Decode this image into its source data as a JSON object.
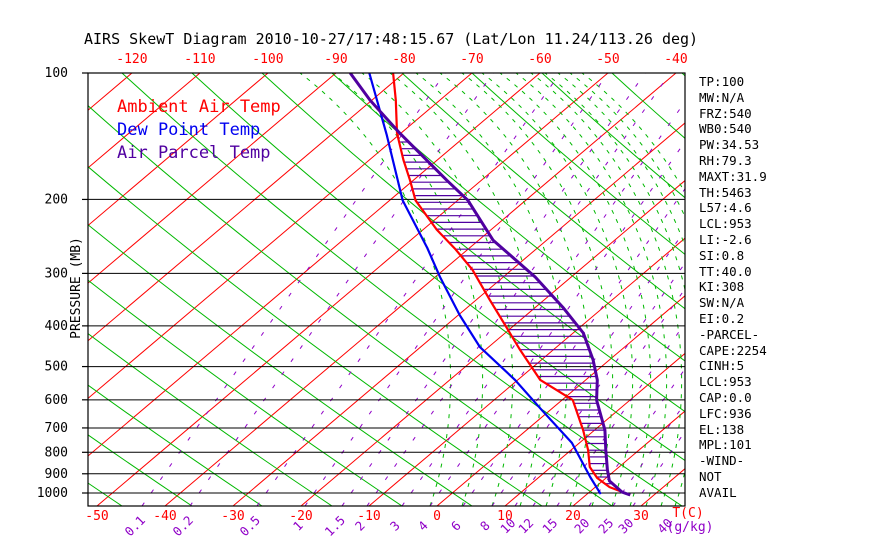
{
  "title": "AIRS SkewT Diagram 2010-10-27/17:48:15.67 (Lat/Lon 11.24/113.26 deg)",
  "legend": [
    {
      "label": "Ambient Air Temp",
      "color": "#ff0000"
    },
    {
      "label": "Dew Point Temp",
      "color": "#0000f0"
    },
    {
      "label": "Air Parcel Temp",
      "color": "#5000a0"
    }
  ],
  "left_axis": {
    "label": "PRESSURE (MB)",
    "ticks": [
      100,
      200,
      300,
      400,
      500,
      600,
      700,
      800,
      900,
      1000
    ]
  },
  "top_axis": {
    "ticks": [
      -120,
      -110,
      -100,
      -90,
      -80,
      -70,
      -60,
      -50,
      -40
    ],
    "color": "#ff0000"
  },
  "bottom_axis": {
    "temp_ticks": [
      -50,
      -40,
      -30,
      -20,
      -10,
      0,
      10,
      20,
      30
    ],
    "temp_unit": "T(C)",
    "temp_color": "#ff0000",
    "mixing_ratio_ticks": [
      "0.1",
      "0.2",
      "0.5",
      "1",
      "1.5",
      "2",
      "3",
      "4",
      "6",
      "8",
      "10",
      "12",
      "15",
      "20",
      "25",
      "30"
    ],
    "mixing_ratio_unit": "(g/kg)",
    "mixing_ratio_overlap": "40",
    "mixing_color": "#9000c8"
  },
  "stats": [
    "TP:100",
    "MW:N/A",
    "FRZ:540",
    "WB0:540",
    "PW:34.53",
    "RH:79.3",
    "MAXT:31.9",
    "TH:5463",
    "L57:4.6",
    "LCL:953",
    "LI:-2.6",
    "SI:0.8",
    "TT:40.0",
    "KI:308",
    "SW:N/A",
    "EI:0.2",
    "-PARCEL-",
    "CAPE:2254",
    "CINH:5",
    "LCL:953",
    "CAP:0.0",
    "LFC:936",
    "EL:138",
    "MPL:101",
    "-WIND-",
    "NOT",
    "AVAIL"
  ],
  "chart_data": {
    "type": "line",
    "title": "AIRS SkewT Diagram (skew-T / log-P sounding)",
    "xlabel": "Temperature (C)",
    "ylabel": "Pressure (MB), log scale, 100 at top to 1000 at bottom",
    "ylim": [
      100,
      1060
    ],
    "grid": "skew-t background: red skewed isotherms every 10 C, green solid dry adiabats, green dashed moist adiabats, purple dashed mixing-ratio lines",
    "legend_position": "top-left inside plot",
    "series": [
      {
        "name": "Ambient Air Temp",
        "color": "#ff0000",
        "points": [
          [
            100,
            -81.6
          ],
          [
            116,
            -76.5
          ],
          [
            139,
            -70.6
          ],
          [
            161,
            -65.0
          ],
          [
            180,
            -60.5
          ],
          [
            201,
            -56.2
          ],
          [
            236,
            -48.0
          ],
          [
            263,
            -41.8
          ],
          [
            294,
            -35.8
          ],
          [
            347,
            -28.0
          ],
          [
            398,
            -21.4
          ],
          [
            456,
            -14.9
          ],
          [
            538,
            -6.7
          ],
          [
            601,
            1.6
          ],
          [
            708,
            8.3
          ],
          [
            790,
            12.5
          ],
          [
            867,
            15.7
          ],
          [
            921,
            18.7
          ],
          [
            968,
            22.1
          ],
          [
            1011,
            26.5
          ]
        ]
      },
      {
        "name": "Dew Point Temp",
        "color": "#0000f0",
        "points": [
          [
            100,
            -85.1
          ],
          [
            140,
            -71.9
          ],
          [
            201,
            -58.1
          ],
          [
            261,
            -46.2
          ],
          [
            306,
            -39.3
          ],
          [
            377,
            -29.8
          ],
          [
            449,
            -21.3
          ],
          [
            538,
            -10.4
          ],
          [
            635,
            -1.2
          ],
          [
            760,
            8.9
          ],
          [
            916,
            17.5
          ],
          [
            1006,
            22.0
          ]
        ]
      },
      {
        "name": "Air Parcel Temp",
        "color": "#5000a0",
        "points": [
          [
            100,
            -87.9
          ],
          [
            116,
            -80.3
          ],
          [
            139,
            -70.2
          ],
          [
            180,
            -55.1
          ],
          [
            201,
            -48.5
          ],
          [
            250,
            -37.9
          ],
          [
            306,
            -25.3
          ],
          [
            361,
            -16.0
          ],
          [
            416,
            -8.5
          ],
          [
            482,
            -2.4
          ],
          [
            538,
            1.7
          ],
          [
            601,
            5.1
          ],
          [
            708,
            11.5
          ],
          [
            790,
            15.1
          ],
          [
            881,
            18.8
          ],
          [
            936,
            21.0
          ],
          [
            995,
            24.8
          ],
          [
            1011,
            26.5
          ]
        ]
      }
    ],
    "hatch": {
      "between": [
        "Ambient Air Temp",
        "Air Parcel Temp"
      ],
      "style": "horizontal purple hatch lines (CAPE area)",
      "p_top": 145,
      "p_bottom": 990
    }
  },
  "colors": {
    "isotherm": "#ff0000",
    "adiabat": "#00b800",
    "mixing": "#9000c8",
    "hatch": "#5000a0",
    "frame": "#000000"
  }
}
